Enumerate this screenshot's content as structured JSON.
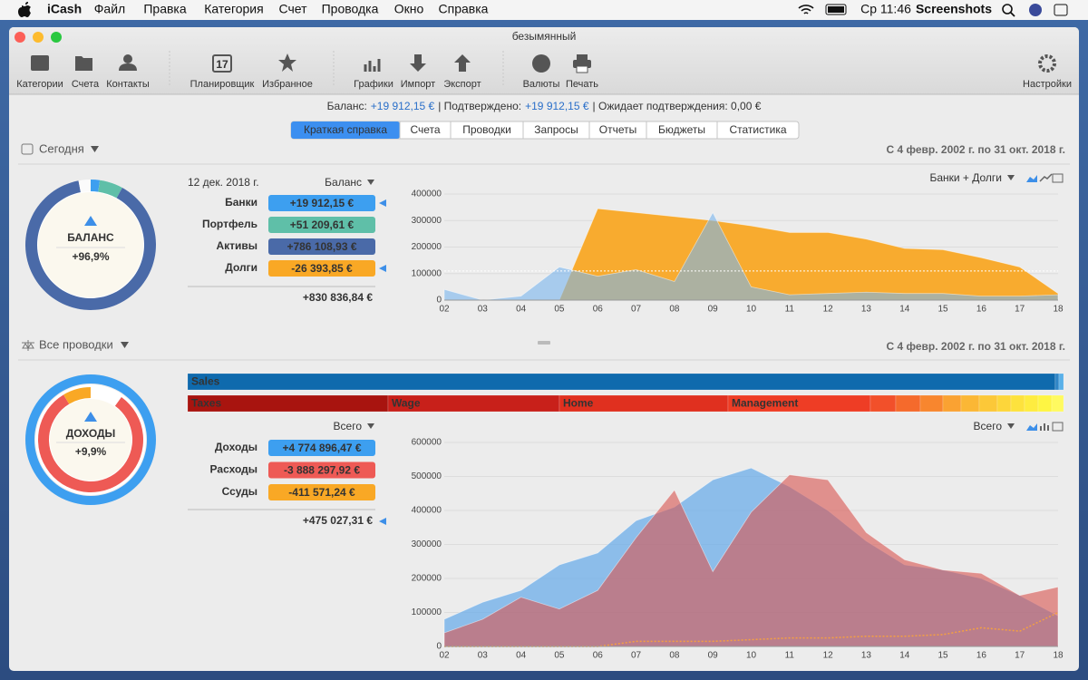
{
  "menu_bar": {
    "app": "iCash",
    "items": [
      "Файл",
      "Правка",
      "Категория",
      "Счет",
      "Проводка",
      "Окно",
      "Справка"
    ],
    "clock": "Ср 11:46",
    "user": "Screenshots"
  },
  "window": {
    "title": "безымянный"
  },
  "toolbar": {
    "items": [
      "Категории",
      "Счета",
      "Контакты",
      "Планировщик",
      "Избранное",
      "Графики",
      "Импорт",
      "Экспорт",
      "Валюты",
      "Печать"
    ],
    "settings": "Настройки"
  },
  "status": {
    "balance_label": "Баланс:",
    "balance": "+19 912,15 €",
    "confirmed_label": "| Подтверждено:",
    "confirmed": "+19 912,15 €",
    "pending": "| Ожидает подтверждения: 0,00 €"
  },
  "tabs": {
    "items": [
      "Краткая справка",
      "Счета",
      "Проводки",
      "Запросы",
      "Отчеты",
      "Бюджеты",
      "Статистика"
    ],
    "active": 0
  },
  "today": {
    "title": "Сегодня",
    "range": "С 4 февр. 2002 г. по 31 окт. 2018 г.",
    "date": "12 дек. 2018 г.",
    "selector": "Баланс",
    "donut_label": "БАЛАНС",
    "donut_percent": "+96,9%",
    "rows": [
      {
        "name": "Банки",
        "value": 19912.15,
        "label": "+19 912,15 €",
        "color": "#3d9ff0"
      },
      {
        "name": "Портфель",
        "value": 51209.61,
        "label": "+51 209,61 €",
        "color": "#5fbfa8"
      },
      {
        "name": "Активы",
        "value": 786108.93,
        "label": "+786 108,93 €",
        "color": "#4a6aa8"
      },
      {
        "name": "Долги",
        "value": -26393.85,
        "label": "-26 393,85 €",
        "color": "#f9a825"
      }
    ],
    "total": "+830 836,84 €",
    "chart_selector": "Банки + Долги"
  },
  "transactions": {
    "title": "Все проводки",
    "range": "С 4 февр. 2002 г. по 31 окт. 2018 г.",
    "selector": "Всего",
    "donut_label": "ДОХОДЫ",
    "donut_percent": "+9,9%",
    "rows": [
      {
        "name": "Доходы",
        "value": 4774896.47,
        "label": "+4 774 896,47 €",
        "color": "#3d9ff0"
      },
      {
        "name": "Расходы",
        "value": -3888297.92,
        "label": "-3 888 297,92 €",
        "color": "#ee5a55"
      },
      {
        "name": "Ссуды",
        "value": -411571.24,
        "label": "-411 571,24 €",
        "color": "#f9a825"
      }
    ],
    "total": "+475 027,31 €",
    "chart_selector": "Всего",
    "income_bar": [
      {
        "name": "Sales",
        "value": 4730000,
        "color": "#0f6aad"
      },
      {
        "name": null,
        "value": 20000,
        "color": "#2f86c6"
      },
      {
        "name": null,
        "value": 24896,
        "color": "#5ab0e8"
      }
    ],
    "expense_bar": [
      {
        "name": "Taxes",
        "value": 889500,
        "color": "#a8140f"
      },
      {
        "name": "Wage",
        "value": 760700,
        "color": "#c8201a"
      },
      {
        "name": "Home",
        "value": 748700,
        "color": "#e0301f"
      },
      {
        "name": "Management",
        "value": 631900,
        "color": "#ee3d25"
      },
      {
        "name": null,
        "value": 112700,
        "color": "#f2502a"
      },
      {
        "name": null,
        "value": 108700,
        "color": "#f56a2c"
      },
      {
        "name": null,
        "value": 100600,
        "color": "#f8862e"
      },
      {
        "name": null,
        "value": 80500,
        "color": "#faa232"
      },
      {
        "name": null,
        "value": 80500,
        "color": "#fbb735"
      },
      {
        "name": null,
        "value": 80500,
        "color": "#fcc838"
      },
      {
        "name": null,
        "value": 60400,
        "color": "#fdd63a"
      },
      {
        "name": null,
        "value": 60400,
        "color": "#fde23d"
      },
      {
        "name": null,
        "value": 60400,
        "color": "#feec40"
      },
      {
        "name": null,
        "value": 60400,
        "color": "#fef543"
      },
      {
        "name": null,
        "value": 52300,
        "color": "#fffa60"
      }
    ]
  },
  "chart_data": [
    {
      "type": "area",
      "categories": [
        "02",
        "03",
        "04",
        "05",
        "06",
        "07",
        "08",
        "09",
        "10",
        "11",
        "12",
        "13",
        "14",
        "15",
        "16",
        "17",
        "18"
      ],
      "ylim": [
        0,
        400000
      ],
      "yticks": [
        0,
        100000,
        200000,
        300000,
        400000
      ],
      "grid": true,
      "reference_line": 110000,
      "series": [
        {
          "color": "#f9a825",
          "opacity": 0.95,
          "values": [
            null,
            null,
            null,
            0,
            345000,
            330000,
            315000,
            300000,
            280000,
            255000,
            255000,
            230000,
            195000,
            190000,
            160000,
            125000,
            25000
          ]
        },
        {
          "color": "#7ab6ee",
          "opacity": 0.6,
          "values": [
            40000,
            0,
            15000,
            125000,
            90000,
            115000,
            70000,
            330000,
            50000,
            20000,
            25000,
            30000,
            25000,
            25000,
            15000,
            15000,
            20000
          ]
        }
      ]
    },
    {
      "type": "area",
      "categories": [
        "02",
        "03",
        "04",
        "05",
        "06",
        "07",
        "08",
        "09",
        "10",
        "11",
        "12",
        "13",
        "14",
        "15",
        "16",
        "17",
        "18"
      ],
      "ylim": [
        0,
        600000
      ],
      "yticks": [
        0,
        100000,
        200000,
        300000,
        400000,
        500000,
        600000
      ],
      "grid": true,
      "series": [
        {
          "color": "#64a9ea",
          "opacity": 0.7,
          "values": [
            80000,
            130000,
            165000,
            240000,
            275000,
            370000,
            410000,
            490000,
            525000,
            470000,
            400000,
            310000,
            240000,
            225000,
            200000,
            150000,
            90000
          ]
        },
        {
          "color": "#d9534f",
          "opacity": 0.6,
          "values": [
            40000,
            80000,
            145000,
            110000,
            165000,
            320000,
            460000,
            220000,
            395000,
            505000,
            490000,
            335000,
            255000,
            225000,
            215000,
            150000,
            175000
          ]
        },
        {
          "color": "#f5a040",
          "opacity": 1,
          "line_style": "dotted",
          "values": [
            0,
            0,
            0,
            0,
            0,
            15000,
            15000,
            15000,
            20000,
            25000,
            25000,
            30000,
            30000,
            35000,
            55000,
            45000,
            100000
          ]
        }
      ]
    }
  ]
}
